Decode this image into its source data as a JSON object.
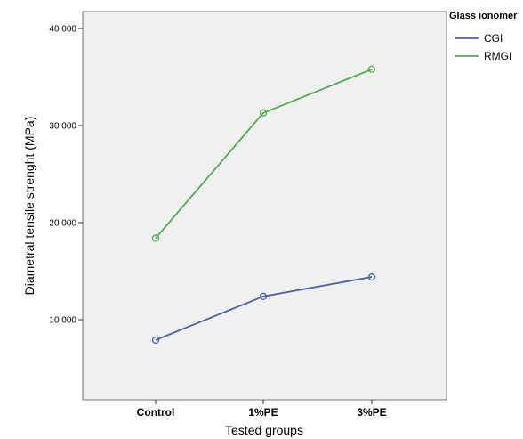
{
  "chart_data": {
    "type": "line",
    "categories": [
      "Control",
      "1%PE",
      "3%PE"
    ],
    "series": [
      {
        "name": "CGI",
        "values": [
          7900,
          12400,
          14400
        ],
        "color": "#4a5fb0"
      },
      {
        "name": "RMGI",
        "values": [
          18400,
          31300,
          35800
        ],
        "color": "#4caf50"
      }
    ],
    "xlabel": "Tested groups",
    "ylabel": "Diametral tensile strenght (MPa)",
    "ylim": [
      3000,
      42000
    ],
    "yticks": [
      10000,
      20000,
      30000,
      40000
    ],
    "ytick_labels": [
      "10 000",
      "20 000",
      "30 000",
      "40 000"
    ],
    "legend": {
      "title": "Glass ionomer",
      "placement": "top-right"
    },
    "plot_background": "#f0f0f0",
    "grid": false
  }
}
